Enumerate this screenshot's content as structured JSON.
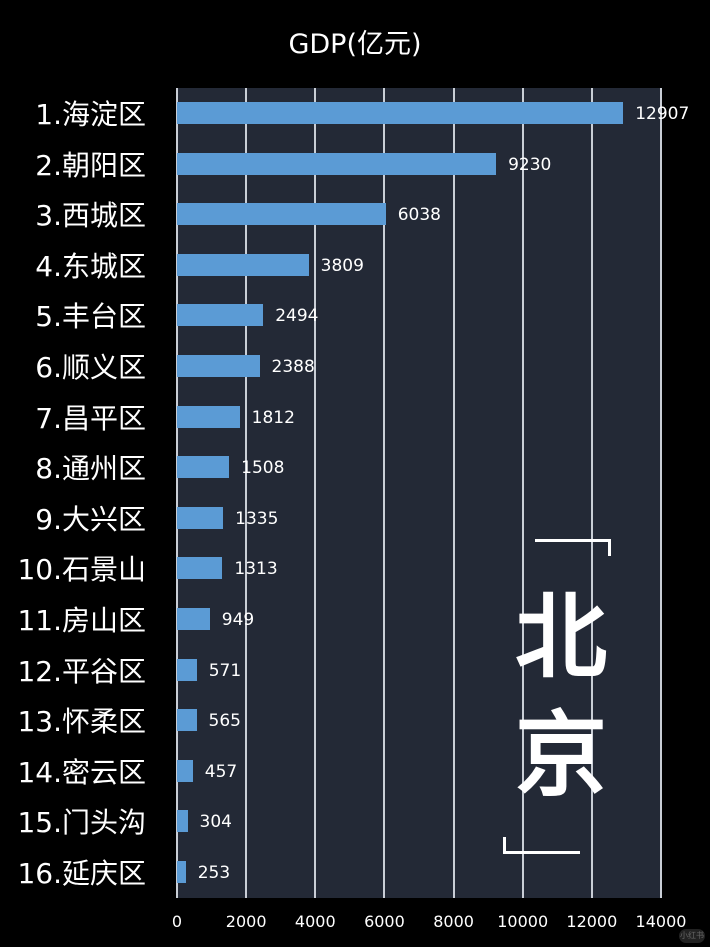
{
  "chart_data": {
    "type": "bar",
    "orientation": "horizontal",
    "title": "GDP(亿元)",
    "xlabel": "",
    "ylabel": "",
    "xlim": [
      0,
      14000
    ],
    "x_ticks": [
      "0",
      "2000",
      "4000",
      "6000",
      "8000",
      "10000",
      "12000",
      "14000"
    ],
    "grid": true,
    "categories": [
      "1.海淀区",
      "2.朝阳区",
      "3.西城区",
      "4.东城区",
      "5.丰台区",
      "6.顺义区",
      "7.昌平区",
      "8.通州区",
      "9.大兴区",
      "10.石景山",
      "11.房山区",
      "12.平谷区",
      "13.怀柔区",
      "14.密云区",
      "15.门头沟",
      "16.延庆区"
    ],
    "values": [
      12907,
      9230,
      6038,
      3809,
      2494,
      2388,
      1812,
      1508,
      1335,
      1313,
      949,
      571,
      565,
      457,
      304,
      253
    ],
    "bar_color": "#5b9bd5",
    "background_color": "#232936",
    "annotation": "北京"
  },
  "title": "GDP(亿元)",
  "annotation": {
    "line1": "北",
    "line2": "京"
  },
  "watermark": "小红书"
}
